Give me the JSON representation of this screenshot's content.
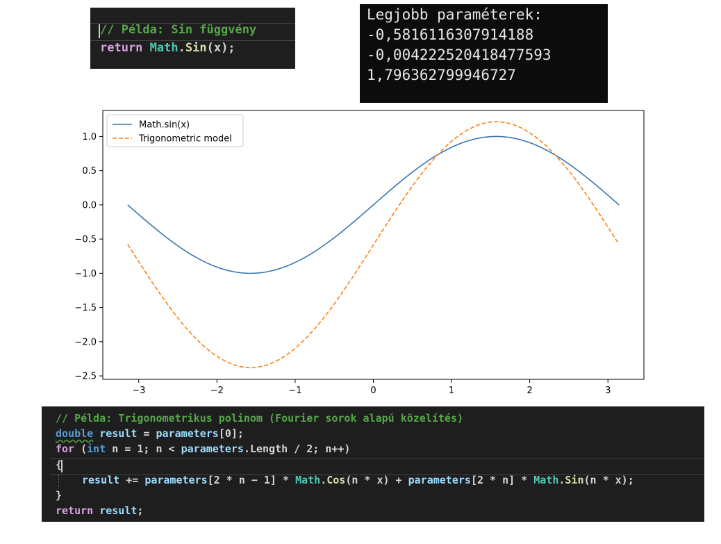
{
  "code_top": {
    "comment": "// Példa: Sin függvény",
    "kw_return": "return",
    "cls_math": "Math",
    "dot": ".",
    "fn_sin": "Sin",
    "args": "(x);"
  },
  "console": {
    "lines": [
      "Legjobb paraméterek:",
      "-0,5816116307914188",
      "-0,004222520418477593",
      "1,796362799946727"
    ]
  },
  "chart_data": {
    "type": "line",
    "x_range": [
      -3.14159,
      3.14159
    ],
    "xlim": [
      -3.46,
      3.46
    ],
    "ylim": [
      -2.55,
      1.38
    ],
    "xticks": [
      -3,
      -2,
      -1,
      0,
      1,
      2,
      3
    ],
    "xtick_labels": [
      "−3",
      "−2",
      "−1",
      "0",
      "1",
      "2",
      "3"
    ],
    "yticks": [
      1.0,
      0.5,
      0.0,
      -0.5,
      -1.0,
      -1.5,
      -2.0,
      -2.5
    ],
    "ytick_labels": [
      "1.0",
      "0.5",
      "0.0",
      "−0.5",
      "−1.0",
      "−1.5",
      "−2.0",
      "−2.5"
    ],
    "grid": false,
    "legend_position": "upper left",
    "series": [
      {
        "name": "Math.sin(x)",
        "color": "#3a75b0",
        "style": "solid",
        "formula": "sin(x)"
      },
      {
        "name": "Trigonometric model",
        "color": "#ff7f0e",
        "style": "dashed",
        "formula": "-0.5816116307914188 + -0.004222520418477593*cos(x) + 1.796362799946727*sin(x)"
      }
    ],
    "model_parameters": [
      -0.5816116307914188,
      -0.004222520418477593,
      1.796362799946727
    ]
  },
  "code_bottom": {
    "comment": "// Példa: Trigonometrikus polinom (Fourier sorok alapú közelítés)",
    "l2_type": "double",
    "l2_id": " result",
    "l2_op": " = ",
    "l2_params": "parameters",
    "l2_idx": "[0];",
    "l3_for": "for",
    "l3_a": " (",
    "l3_int": "int",
    "l3_b": " n = 1; n < ",
    "l3_params": "parameters",
    "l3_c": ".Length / 2; n++)",
    "l4": "{",
    "l5_result": "result",
    "l5_a": " += ",
    "l5_params1": "parameters",
    "l5_b": "[2 * n − 1] * ",
    "l5_math1": "Math",
    "l5_dot1": ".",
    "l5_cos": "Cos",
    "l5_c": "(n * x) + ",
    "l5_params2": "parameters",
    "l5_d": "[2 * n] * ",
    "l5_math2": "Math",
    "l5_dot2": ".",
    "l5_sin": "Sin",
    "l5_e": "(n * x);",
    "l6": "}",
    "l7_return": "return",
    "l7_result": " result",
    "l7_semi": ";"
  }
}
